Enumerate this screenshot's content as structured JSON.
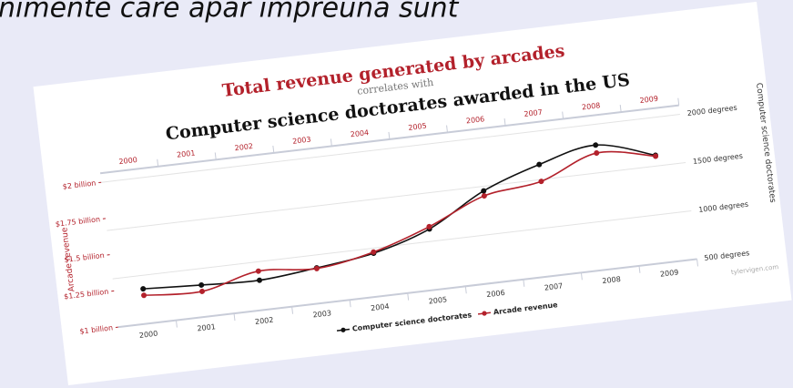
{
  "caption": "nimente care apar împreună sunt",
  "chart_data": {
    "type": "line",
    "title": "Total revenue generated by arcades",
    "subtitle": "correlates with",
    "title2": "Computer science doctorates awarded in the US",
    "ylabel": "Arcade revenue",
    "y2label": "Computer science doctorates",
    "source": "tylervigen.com",
    "categories": [
      "2000",
      "2001",
      "2002",
      "2003",
      "2004",
      "2005",
      "2006",
      "2007",
      "2008",
      "2009"
    ],
    "series": [
      {
        "name": "Computer science doctorates",
        "color": "#111111",
        "axis": "y2",
        "values": [
          861,
          830,
          809,
          867,
          948,
          1129,
          1453,
          1656,
          1787,
          1611
        ]
      },
      {
        "name": "Arcade revenue",
        "color": "#b3212b",
        "values": [
          1.196,
          1.176,
          1.269,
          1.24,
          1.307,
          1.435,
          1.601,
          1.654,
          1.803,
          1.734
        ]
      }
    ],
    "ylim": [
      1,
      2
    ],
    "yticks": [
      {
        "value": 1,
        "label": "$1 billion"
      },
      {
        "value": 1.25,
        "label": "$1.25 billion"
      },
      {
        "value": 1.5,
        "label": "$1.5 billion"
      },
      {
        "value": 1.75,
        "label": "$1.75 billion"
      },
      {
        "value": 2,
        "label": "$2 billion"
      }
    ],
    "y2lim": [
      500,
      2000
    ],
    "y2ticks": [
      {
        "value": 500,
        "label": "500 degrees"
      },
      {
        "value": 1000,
        "label": "1000 degrees"
      },
      {
        "value": 1500,
        "label": "1500 degrees"
      },
      {
        "value": 2000,
        "label": "2000 degrees"
      }
    ],
    "grid": true
  }
}
